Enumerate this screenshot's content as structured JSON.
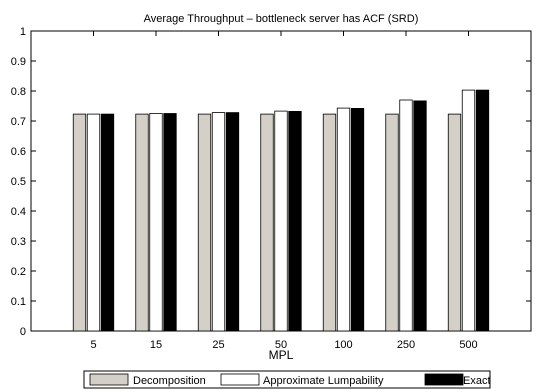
{
  "chart_data": {
    "type": "bar",
    "title": "Average Throughput – bottleneck server has ACF (SRD)",
    "xlabel": "MPL",
    "ylabel": "",
    "ylim": [
      0,
      1
    ],
    "yticks": [
      "0",
      "0.1",
      "0.2",
      "0.3",
      "0.4",
      "0.5",
      "0.6",
      "0.7",
      "0.8",
      "0.9",
      "1"
    ],
    "grid": false,
    "legend_position": "bottom",
    "categories": [
      "5",
      "15",
      "25",
      "50",
      "100",
      "250",
      "500"
    ],
    "series": [
      {
        "name": "Decomposition",
        "color": "#d4d0c8",
        "values": [
          0.723,
          0.723,
          0.723,
          0.723,
          0.723,
          0.723,
          0.723
        ]
      },
      {
        "name": "Approximate Lumpability",
        "color": "#ffffff",
        "values": [
          0.723,
          0.725,
          0.728,
          0.733,
          0.743,
          0.77,
          0.803
        ]
      },
      {
        "name": "Exact",
        "color": "#000000",
        "values": [
          0.723,
          0.725,
          0.728,
          0.732,
          0.742,
          0.767,
          0.803
        ]
      }
    ]
  }
}
